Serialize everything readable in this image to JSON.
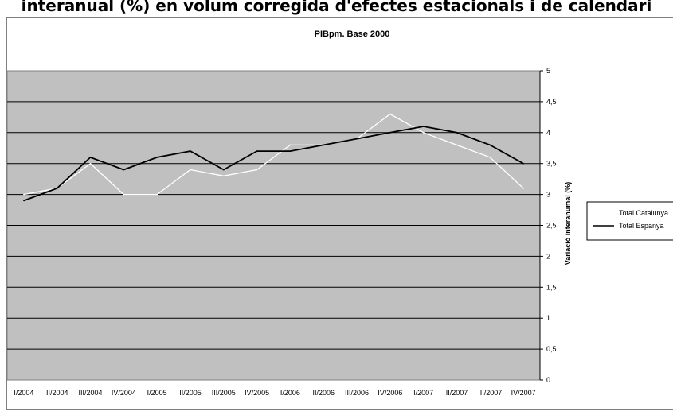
{
  "page": {
    "title_fragment": "interanual (%) en volum corregida d'efectes estacionals i de calendari"
  },
  "chart_data": {
    "type": "line",
    "title": "PIBpm. Base 2000",
    "xlabel": "",
    "ylabel": "Variació interanumal (%)",
    "ylim": [
      0,
      5
    ],
    "yticks": [
      "0",
      "0,5",
      "1",
      "1,5",
      "2",
      "2,5",
      "3",
      "3,5",
      "4",
      "4,5",
      "5"
    ],
    "categories": [
      "I/2004",
      "II/2004",
      "III/2004",
      "IV/2004",
      "I/2005",
      "II/2005",
      "III/2005",
      "IV/2005",
      "I/2006",
      "II/2006",
      "III/2006",
      "IV/2006",
      "I/2007",
      "II/2007",
      "III/2007",
      "IV/2007"
    ],
    "series": [
      {
        "name": "Total Catalunya",
        "color": "#ffffff",
        "values": [
          3.0,
          3.1,
          3.5,
          3.0,
          3.0,
          3.4,
          3.3,
          3.4,
          3.8,
          3.8,
          3.9,
          4.3,
          4.0,
          3.8,
          3.6,
          3.1
        ]
      },
      {
        "name": "Total Espanya",
        "color": "#000000",
        "values": [
          2.9,
          3.1,
          3.6,
          3.4,
          3.6,
          3.7,
          3.4,
          3.7,
          3.7,
          3.8,
          3.9,
          4.0,
          4.1,
          4.0,
          3.8,
          3.5
        ]
      }
    ],
    "grid": true,
    "legend": "right",
    "plot_background": "#c0c0c0"
  }
}
